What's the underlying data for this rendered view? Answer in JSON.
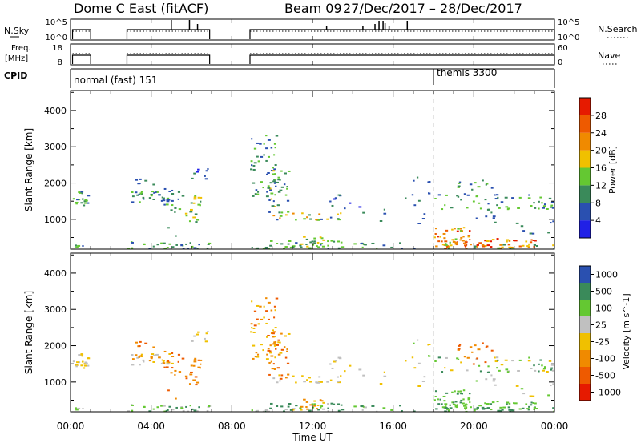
{
  "header": {
    "title": "Dome C East (fitACF)",
    "beam": "Beam 09",
    "date_range": "27/Dec/2017 – 28/Dec/2017"
  },
  "status_panels": {
    "nsky_label": "N.Sky",
    "nsky_ticks": [
      "10^5",
      "10^0"
    ],
    "nsearch_label": "N.Search",
    "nsearch_ticks": [
      "10^5",
      "10^0"
    ],
    "freq_label": "Freq.",
    "freq_unit": "[MHz]",
    "freq_ticks": [
      "18",
      "8"
    ],
    "nave_label": "Nave",
    "nave_ticks": [
      "60",
      "0"
    ],
    "cpid_label": "CPID",
    "cpid_segments": [
      {
        "text": "normal (fast) 151",
        "start_hour": 0
      },
      {
        "text": "themis 3300",
        "start_hour": 18
      }
    ]
  },
  "colors": {
    "power": [
      "#2020e6",
      "#2a50b0",
      "#3a8a5a",
      "#64c832",
      "#f0c000",
      "#f08a00",
      "#ee5a00",
      "#e61a00"
    ],
    "velocity_pos": [
      "#2a50b0",
      "#3a8a5a",
      "#64c832"
    ],
    "velocity_zero": "#c0c0c0",
    "velocity_neg": [
      "#f0c000",
      "#f08a00",
      "#ee5a00",
      "#e61a00"
    ]
  },
  "chart_data": [
    {
      "type": "heatmap",
      "name": "power",
      "ylabel": "Slant Range [km]",
      "yticks": [
        1000,
        2000,
        3000,
        4000
      ],
      "ylim": [
        180,
        4550
      ],
      "xlim": [
        0,
        24
      ],
      "colorbar_label": "Power [dB]",
      "colorbar_ticks": [
        4,
        8,
        12,
        16,
        20,
        24,
        28
      ],
      "colorbar_range": [
        0,
        32
      ]
    },
    {
      "type": "heatmap",
      "name": "velocity",
      "ylabel": "Slant Range [km]",
      "yticks": [
        1000,
        2000,
        3000,
        4000
      ],
      "ylim": [
        180,
        4550
      ],
      "xlim": [
        0,
        24
      ],
      "colorbar_label": "Velocity [m s^-1]",
      "colorbar_ticks": [
        "1000",
        "500",
        "100",
        "25",
        "-25",
        "-100",
        "-500",
        "-1000"
      ]
    }
  ],
  "x_axis": {
    "label": "Time UT",
    "ticks": [
      "00:00",
      "04:00",
      "08:00",
      "12:00",
      "16:00",
      "20:00",
      "00:00"
    ],
    "tick_hours": [
      0,
      4,
      8,
      12,
      16,
      20,
      24
    ]
  },
  "operating_intervals": [
    [
      0.1,
      1.0
    ],
    [
      2.8,
      6.9
    ],
    [
      8.9,
      24.0
    ]
  ],
  "scatter_regions": [
    {
      "t": [
        0.0,
        1.0
      ],
      "r": [
        1400,
        1800
      ],
      "dens": 0.9,
      "pow": [
        1,
        3
      ],
      "vel": [
        3,
        4
      ]
    },
    {
      "t": [
        0.0,
        1.0
      ],
      "r": [
        200,
        330
      ],
      "dens": 0.6,
      "pow": [
        1,
        3
      ],
      "vel": [
        2,
        3
      ]
    },
    {
      "t": [
        2.8,
        5.0
      ],
      "r": [
        1450,
        1800
      ],
      "dens": 0.8,
      "pow": [
        1,
        3
      ],
      "vel": [
        3,
        5
      ]
    },
    {
      "t": [
        2.8,
        6.9
      ],
      "r": [
        200,
        400
      ],
      "dens": 0.7,
      "pow": [
        1,
        3
      ],
      "vel": [
        1,
        3
      ]
    },
    {
      "t": [
        3.0,
        4.4
      ],
      "r": [
        1900,
        2150
      ],
      "dens": 0.3,
      "pow": [
        1,
        2
      ],
      "vel": [
        5,
        6
      ]
    },
    {
      "t": [
        4.6,
        5.5
      ],
      "r": [
        1200,
        1900
      ],
      "dens": 0.35,
      "pow": [
        1,
        3
      ],
      "vel": [
        5,
        6
      ]
    },
    {
      "t": [
        5.5,
        6.4
      ],
      "r": [
        900,
        1700
      ],
      "dens": 0.5,
      "pow": [
        2,
        4
      ],
      "vel": [
        5,
        6
      ]
    },
    {
      "t": [
        5.9,
        6.8
      ],
      "r": [
        2100,
        2450
      ],
      "dens": 0.45,
      "pow": [
        0,
        2
      ],
      "vel": [
        3,
        4
      ]
    },
    {
      "t": [
        4.8,
        5.2
      ],
      "r": [
        500,
        800
      ],
      "dens": 0.3,
      "pow": [
        1,
        2
      ],
      "vel": [
        5,
        6
      ]
    },
    {
      "t": [
        8.9,
        10.2
      ],
      "r": [
        1500,
        3400
      ],
      "dens": 0.35,
      "pow": [
        1,
        3
      ],
      "vel": [
        4,
        6
      ]
    },
    {
      "t": [
        9.7,
        10.8
      ],
      "r": [
        1100,
        2400
      ],
      "dens": 0.45,
      "pow": [
        1,
        4
      ],
      "vel": [
        4,
        6
      ]
    },
    {
      "t": [
        10.0,
        13.5
      ],
      "r": [
        1000,
        1200
      ],
      "dens": 0.55,
      "pow": [
        1,
        5
      ],
      "vel": [
        3,
        4
      ]
    },
    {
      "t": [
        8.9,
        13.5
      ],
      "r": [
        200,
        450
      ],
      "dens": 0.6,
      "pow": [
        1,
        3
      ],
      "vel": [
        1,
        3
      ]
    },
    {
      "t": [
        11.0,
        12.5
      ],
      "r": [
        250,
        600
      ],
      "dens": 0.5,
      "pow": [
        2,
        4
      ],
      "vel": [
        4,
        5
      ]
    },
    {
      "t": [
        12.7,
        14.5
      ],
      "r": [
        1200,
        1700
      ],
      "dens": 0.2,
      "pow": [
        0,
        2
      ],
      "vel": [
        3,
        4
      ]
    },
    {
      "t": [
        14.0,
        17.2
      ],
      "r": [
        200,
        380
      ],
      "dens": 0.45,
      "pow": [
        1,
        3
      ],
      "vel": [
        1,
        3
      ]
    },
    {
      "t": [
        15.2,
        15.7
      ],
      "r": [
        900,
        1500
      ],
      "dens": 0.2,
      "pow": [
        1,
        2
      ],
      "vel": [
        3,
        4
      ]
    },
    {
      "t": [
        16.2,
        17.8
      ],
      "r": [
        1500,
        2200
      ],
      "dens": 0.15,
      "pow": [
        1,
        2
      ],
      "vel": [
        2,
        4
      ]
    },
    {
      "t": [
        17.0,
        17.6
      ],
      "r": [
        800,
        1500
      ],
      "dens": 0.15,
      "pow": [
        1,
        2
      ],
      "vel": [
        3,
        4
      ]
    },
    {
      "t": [
        18.0,
        19.8
      ],
      "r": [
        250,
        800
      ],
      "dens": 0.85,
      "pow": [
        3,
        7
      ],
      "vel": [
        1,
        2
      ]
    },
    {
      "t": [
        18.0,
        24.0
      ],
      "r": [
        200,
        330
      ],
      "dens": 0.6,
      "pow": [
        2,
        6
      ],
      "vel": [
        1,
        2
      ]
    },
    {
      "t": [
        19.5,
        23.0
      ],
      "r": [
        250,
        500
      ],
      "dens": 0.65,
      "pow": [
        4,
        7
      ],
      "vel": [
        1,
        2
      ]
    },
    {
      "t": [
        18.0,
        24.0
      ],
      "r": [
        1300,
        1700
      ],
      "dens": 0.35,
      "pow": [
        1,
        3
      ],
      "vel": [
        1,
        4
      ]
    },
    {
      "t": [
        19.0,
        21.0
      ],
      "r": [
        1500,
        2100
      ],
      "dens": 0.25,
      "pow": [
        1,
        3
      ],
      "vel": [
        5,
        6
      ]
    },
    {
      "t": [
        20.0,
        21.5
      ],
      "r": [
        900,
        1300
      ],
      "dens": 0.25,
      "pow": [
        1,
        2
      ],
      "vel": [
        1,
        3
      ]
    },
    {
      "t": [
        21.5,
        24.0
      ],
      "r": [
        600,
        1000
      ],
      "dens": 0.15,
      "pow": [
        1,
        2
      ],
      "vel": [
        2,
        4
      ]
    }
  ]
}
